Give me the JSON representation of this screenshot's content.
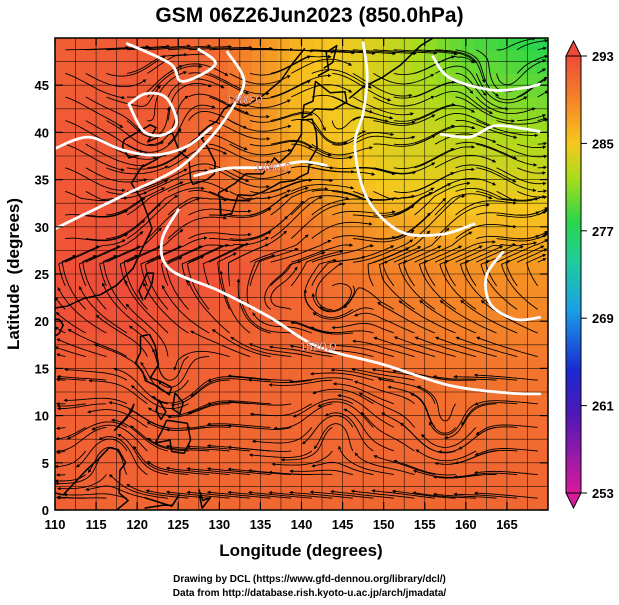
{
  "title": "GSM 06Z26Jun2023 (850.0hPa)",
  "credits": {
    "line1": "Drawing by DCL (https://www.gfd-dennou.org/library/dcl/)",
    "line2": "Data from http://database.rish.kyoto-u.ac.jp/arch/jmadata/"
  },
  "chart_data": {
    "type": "heatmap",
    "title": "GSM 06Z26Jun2023 (850.0hPa)",
    "xlabel": "Longitude (degrees)",
    "ylabel": "Latitude  (degrees)",
    "xlim": [
      110,
      170
    ],
    "ylim": [
      0,
      50
    ],
    "x_ticks": [
      "110",
      "115",
      "120",
      "125",
      "130",
      "135",
      "140",
      "145",
      "150",
      "155",
      "160",
      "165"
    ],
    "y_ticks": [
      "0",
      "5",
      "10",
      "15",
      "20",
      "25",
      "30",
      "35",
      "40",
      "45"
    ],
    "grid": true,
    "colorbar": {
      "ticks": [
        "253",
        "261",
        "269",
        "277",
        "285",
        "293"
      ],
      "range": [
        253,
        293
      ],
      "colors": [
        "#d81b9a",
        "#1a2ad0",
        "#17b4e6",
        "#2ad64a",
        "#f6c81e",
        "#ee4a3a"
      ]
    },
    "contour_labels": [
      {
        "text": "1520.0",
        "lon": 142,
        "lat": 17.3
      },
      {
        "text": "1480.0",
        "lon": 133,
        "lat": 43.5
      },
      {
        "text": "1480.0",
        "lon": 136.5,
        "lat": 36.3
      }
    ],
    "contours": [
      [
        [
          110,
          29.8
        ],
        [
          114,
          31.5
        ],
        [
          119,
          33.6
        ],
        [
          125,
          36.2
        ],
        [
          129,
          39.5
        ],
        [
          131.5,
          42.5
        ],
        [
          133,
          45.5
        ],
        [
          131,
          48.5
        ]
      ],
      [
        [
          110,
          38.3
        ],
        [
          114,
          39.5
        ],
        [
          118,
          38.2
        ],
        [
          122,
          37.6
        ],
        [
          126,
          38.5
        ],
        [
          129,
          40.5
        ]
      ],
      [
        [
          127,
          35.4
        ],
        [
          131,
          36.2
        ],
        [
          136,
          36.3
        ],
        [
          140,
          36.9
        ],
        [
          143,
          36.5
        ]
      ],
      [
        [
          125,
          31.8
        ],
        [
          123,
          28.5
        ],
        [
          124,
          25.5
        ],
        [
          130,
          23.2
        ],
        [
          136,
          20.5
        ],
        [
          142,
          17.3
        ],
        [
          150,
          15.4
        ],
        [
          158,
          13.2
        ],
        [
          165,
          12.4
        ],
        [
          169,
          12.3
        ]
      ],
      [
        [
          147.5,
          49.5
        ],
        [
          148,
          46
        ],
        [
          147.5,
          42
        ],
        [
          146.5,
          38.5
        ],
        [
          148,
          33
        ],
        [
          152,
          29.5
        ],
        [
          157,
          29.2
        ],
        [
          161,
          30.3
        ]
      ],
      [
        [
          156,
          48
        ],
        [
          158,
          45.8
        ],
        [
          163,
          44.5
        ],
        [
          167,
          44.7
        ],
        [
          169,
          45.1
        ]
      ],
      [
        [
          164.5,
          27.3
        ],
        [
          162.5,
          24.8
        ],
        [
          163,
          21.8
        ],
        [
          166,
          20.2
        ],
        [
          169,
          20.4
        ]
      ],
      [
        [
          157,
          39.8
        ],
        [
          160.5,
          39.5
        ],
        [
          163.5,
          40.7
        ],
        [
          167,
          40.4
        ],
        [
          169,
          40.1
        ]
      ],
      [
        [
          118.8,
          49.4
        ],
        [
          124,
          47.3
        ],
        [
          125.5,
          45.4
        ],
        [
          129.5,
          47.2
        ],
        [
          127.5,
          48.8
        ]
      ],
      [
        [
          119,
          43
        ],
        [
          120.7,
          40.2
        ],
        [
          123,
          39.7
        ],
        [
          124.8,
          41
        ],
        [
          123.5,
          43.7
        ],
        [
          121,
          44.1
        ],
        [
          119,
          43
        ]
      ]
    ],
    "temperature_field": {
      "grid_lon": [
        110,
        120,
        130,
        140,
        150,
        160,
        170
      ],
      "grid_lat": [
        50,
        45,
        40,
        35,
        30,
        25,
        20,
        15,
        10,
        5,
        0
      ],
      "values": [
        [
          291.5,
          292.0,
          290.5,
          286.0,
          283.5,
          279.0,
          277.0
        ],
        [
          291.5,
          292.0,
          291.0,
          285.5,
          283.5,
          280.5,
          279.5
        ],
        [
          292.0,
          292.0,
          290.5,
          286.0,
          284.0,
          282.5,
          281.5
        ],
        [
          292.0,
          292.0,
          290.5,
          288.0,
          284.5,
          284.0,
          283.5
        ],
        [
          292.0,
          292.5,
          291.5,
          290.0,
          287.5,
          286.0,
          286.0
        ],
        [
          292.5,
          293.0,
          292.5,
          291.0,
          289.5,
          288.5,
          288.0
        ],
        [
          292.5,
          292.5,
          291.5,
          291.0,
          290.0,
          289.0,
          289.0
        ],
        [
          291.5,
          291.5,
          291.5,
          291.0,
          290.5,
          290.0,
          290.0
        ],
        [
          291.5,
          291.5,
          291.0,
          291.0,
          291.0,
          290.5,
          290.5
        ],
        [
          291.5,
          291.5,
          291.0,
          291.0,
          291.0,
          291.0,
          291.0
        ],
        [
          291.5,
          291.0,
          291.0,
          291.0,
          291.0,
          291.0,
          291.0
        ]
      ]
    },
    "vortices": [
      {
        "lon": 122.5,
        "lat": 39.5
      },
      {
        "lon": 143,
        "lat": 22
      },
      {
        "lon": 144,
        "lat": 39
      },
      {
        "lon": 136,
        "lat": 21.5
      },
      {
        "lon": 144.5,
        "lat": 9.5
      },
      {
        "lon": 124,
        "lat": 13
      },
      {
        "lon": 117,
        "lat": 7
      },
      {
        "lon": 157.5,
        "lat": 8
      },
      {
        "lon": 164,
        "lat": 44.5
      }
    ]
  }
}
